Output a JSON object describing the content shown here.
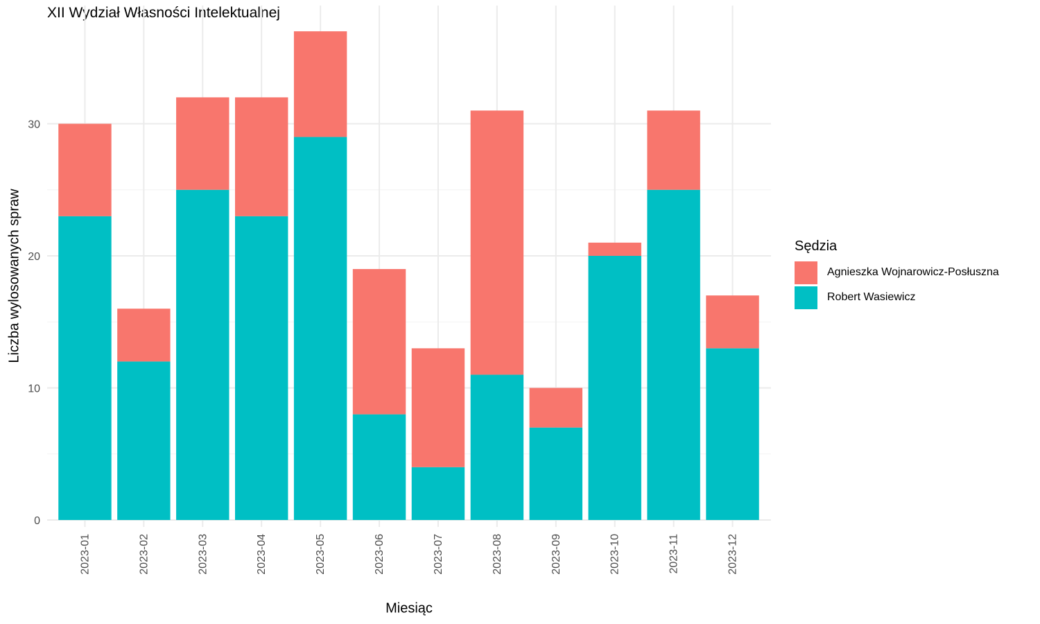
{
  "chart_data": {
    "type": "bar",
    "stacked": true,
    "title": "XII Wydział Własności Intelektualnej",
    "xlabel": "Miesiąc",
    "ylabel": "Liczba wylosowanych spraw",
    "legend_title": "Sędzia",
    "legend_position": "right",
    "grid": true,
    "ylim": [
      0,
      38
    ],
    "y_ticks": [
      0,
      10,
      20,
      30
    ],
    "categories": [
      "2023-01",
      "2023-02",
      "2023-03",
      "2023-04",
      "2023-05",
      "2023-06",
      "2023-07",
      "2023-08",
      "2023-09",
      "2023-10",
      "2023-11",
      "2023-12"
    ],
    "series": [
      {
        "name": "Agnieszka Wojnarowicz-Posłuszna",
        "color": "#F8766D",
        "values": [
          7,
          4,
          7,
          9,
          8,
          11,
          9,
          20,
          3,
          1,
          6,
          4
        ]
      },
      {
        "name": "Robert Wasiewicz",
        "color": "#00BFC4",
        "values": [
          23,
          12,
          25,
          23,
          29,
          8,
          4,
          11,
          7,
          20,
          25,
          13
        ]
      }
    ]
  }
}
